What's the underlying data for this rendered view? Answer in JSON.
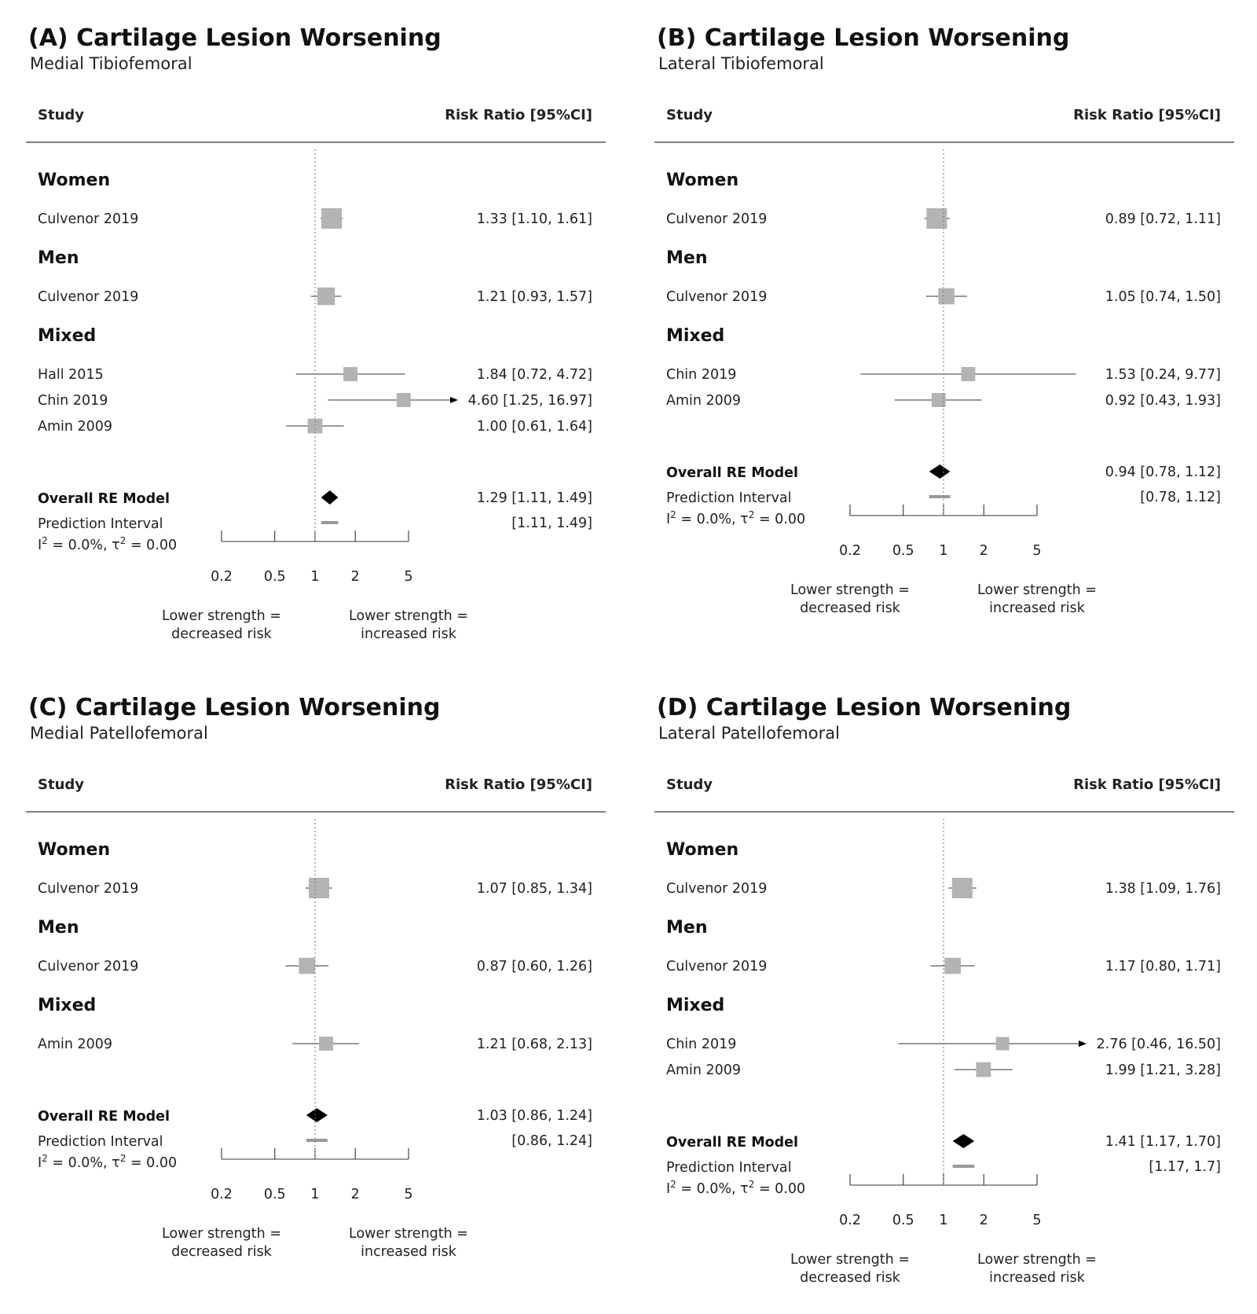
{
  "colors": {
    "marker": "#b3b3b3",
    "diamond": "#000000",
    "prediction": "#999999",
    "line": "#333333",
    "ref_line": "#777777"
  },
  "axis_labels": {
    "left": "Lower strength =",
    "left2": "decreased risk",
    "right": "Lower strength =",
    "right2": "increased risk"
  },
  "chart_data": [
    {
      "type": "forest",
      "title": "(A) Cartilage Lesion Worsening",
      "subtitle": "Medial Tibiofemoral",
      "col_study": "Study",
      "col_rr": "Risk Ratio [95%CI]",
      "x_scale": "log",
      "xlim": [
        0.2,
        5
      ],
      "ticks": [
        "0.2",
        "0.5",
        "1",
        "2",
        "5"
      ],
      "groups": [
        {
          "name": "Women",
          "studies": [
            {
              "study": "Culvenor 2019",
              "rr": 1.33,
              "lo": 1.1,
              "hi": 1.61,
              "label": "1.33 [1.10,  1.61]",
              "weight": 1.0
            }
          ]
        },
        {
          "name": "Men",
          "studies": [
            {
              "study": "Culvenor 2019",
              "rr": 1.21,
              "lo": 0.93,
              "hi": 1.57,
              "label": "1.21 [0.93,  1.57]",
              "weight": 0.8
            }
          ]
        },
        {
          "name": "Mixed",
          "studies": [
            {
              "study": "Hall 2015",
              "rr": 1.84,
              "lo": 0.72,
              "hi": 4.72,
              "label": "1.84 [0.72,  4.72]",
              "weight": 0.55
            },
            {
              "study": "Chin 2019",
              "rr": 4.6,
              "lo": 1.25,
              "hi": 16.97,
              "label": "4.60 [1.25, 16.97]",
              "weight": 0.55,
              "arrow": true
            },
            {
              "study": "Amin 2009",
              "rr": 1.0,
              "lo": 0.61,
              "hi": 1.64,
              "label": "1.00 [0.61,  1.64]",
              "weight": 0.6
            }
          ]
        }
      ],
      "overall": {
        "label": "Overall RE Model",
        "rr": 1.29,
        "lo": 1.11,
        "hi": 1.49,
        "text": "1.29 [1.11, 1.49]"
      },
      "prediction": {
        "label": "Prediction Interval",
        "lo": 1.11,
        "hi": 1.49,
        "text": "[1.11, 1.49]"
      },
      "heterogeneity": {
        "i2": "0.0%",
        "tau2": "0.00"
      }
    },
    {
      "type": "forest",
      "title": "(B) Cartilage Lesion Worsening",
      "subtitle": "Lateral Tibiofemoral",
      "col_study": "Study",
      "col_rr": "Risk Ratio [95%CI]",
      "x_scale": "log",
      "xlim": [
        0.2,
        5
      ],
      "ticks": [
        "0.2",
        "0.5",
        "1",
        "2",
        "5"
      ],
      "groups": [
        {
          "name": "Women",
          "studies": [
            {
              "study": "Culvenor 2019",
              "rr": 0.89,
              "lo": 0.72,
              "hi": 1.11,
              "label": "0.89 [0.72, 1.11]",
              "weight": 1.0
            }
          ]
        },
        {
          "name": "Men",
          "studies": [
            {
              "study": "Culvenor 2019",
              "rr": 1.05,
              "lo": 0.74,
              "hi": 1.5,
              "label": "1.05 [0.74, 1.50]",
              "weight": 0.7
            }
          ]
        },
        {
          "name": "Mixed",
          "studies": [
            {
              "study": "Chin 2019",
              "rr": 1.53,
              "lo": 0.24,
              "hi": 9.77,
              "label": "1.53 [0.24, 9.77]",
              "weight": 0.55
            },
            {
              "study": "Amin 2009",
              "rr": 0.92,
              "lo": 0.43,
              "hi": 1.93,
              "label": "0.92 [0.43, 1.93]",
              "weight": 0.55
            }
          ]
        }
      ],
      "overall": {
        "label": "Overall RE Model",
        "rr": 0.94,
        "lo": 0.78,
        "hi": 1.12,
        "text": "0.94 [0.78, 1.12]"
      },
      "prediction": {
        "label": "Prediction Interval",
        "lo": 0.78,
        "hi": 1.12,
        "text": "[0.78, 1.12]"
      },
      "heterogeneity": {
        "i2": "0.0%",
        "tau2": "0.00"
      }
    },
    {
      "type": "forest",
      "title": "(C) Cartilage Lesion Worsening",
      "subtitle": "Medial Patellofemoral",
      "col_study": "Study",
      "col_rr": "Risk Ratio [95%CI]",
      "x_scale": "log",
      "xlim": [
        0.2,
        5
      ],
      "ticks": [
        "0.2",
        "0.5",
        "1",
        "2",
        "5"
      ],
      "groups": [
        {
          "name": "Women",
          "studies": [
            {
              "study": "Culvenor 2019",
              "rr": 1.07,
              "lo": 0.85,
              "hi": 1.34,
              "label": "1.07 [0.85, 1.34]",
              "weight": 1.0
            }
          ]
        },
        {
          "name": "Men",
          "studies": [
            {
              "study": "Culvenor 2019",
              "rr": 0.87,
              "lo": 0.6,
              "hi": 1.26,
              "label": "0.87 [0.60, 1.26]",
              "weight": 0.7
            }
          ]
        },
        {
          "name": "Mixed",
          "studies": [
            {
              "study": "Amin 2009",
              "rr": 1.21,
              "lo": 0.68,
              "hi": 2.13,
              "label": "1.21 [0.68, 2.13]",
              "weight": 0.55
            }
          ]
        }
      ],
      "overall": {
        "label": "Overall RE Model",
        "rr": 1.03,
        "lo": 0.86,
        "hi": 1.24,
        "text": "1.03 [0.86, 1.24]"
      },
      "prediction": {
        "label": "Prediction Interval",
        "lo": 0.86,
        "hi": 1.24,
        "text": "[0.86, 1.24]"
      },
      "heterogeneity": {
        "i2": "0.0%",
        "tau2": "0.00"
      }
    },
    {
      "type": "forest",
      "title": "(D) Cartilage Lesion Worsening",
      "subtitle": "Lateral Patellofemoral",
      "col_study": "Study",
      "col_rr": "Risk Ratio [95%CI]",
      "x_scale": "log",
      "xlim": [
        0.2,
        5
      ],
      "ticks": [
        "0.2",
        "0.5",
        "1",
        "2",
        "5"
      ],
      "groups": [
        {
          "name": "Women",
          "studies": [
            {
              "study": "Culvenor 2019",
              "rr": 1.38,
              "lo": 1.09,
              "hi": 1.76,
              "label": "1.38 [1.09,  1.76]",
              "weight": 1.0
            }
          ]
        },
        {
          "name": "Men",
          "studies": [
            {
              "study": "Culvenor 2019",
              "rr": 1.17,
              "lo": 0.8,
              "hi": 1.71,
              "label": "1.17 [0.80,  1.71]",
              "weight": 0.7
            }
          ]
        },
        {
          "name": "Mixed",
          "studies": [
            {
              "study": "Chin 2019",
              "rr": 2.76,
              "lo": 0.46,
              "hi": 16.5,
              "label": "2.76 [0.46, 16.50]",
              "weight": 0.5,
              "arrow": true
            },
            {
              "study": "Amin 2009",
              "rr": 1.99,
              "lo": 1.21,
              "hi": 3.28,
              "label": "1.99 [1.21,  3.28]",
              "weight": 0.6
            }
          ]
        }
      ],
      "overall": {
        "label": "Overall RE Model",
        "rr": 1.41,
        "lo": 1.17,
        "hi": 1.7,
        "text": "1.41 [1.17, 1.70]"
      },
      "prediction": {
        "label": "Prediction Interval",
        "lo": 1.17,
        "hi": 1.7,
        "text": "[1.17, 1.7]"
      },
      "heterogeneity": {
        "i2": "0.0%",
        "tau2": "0.00"
      }
    }
  ]
}
